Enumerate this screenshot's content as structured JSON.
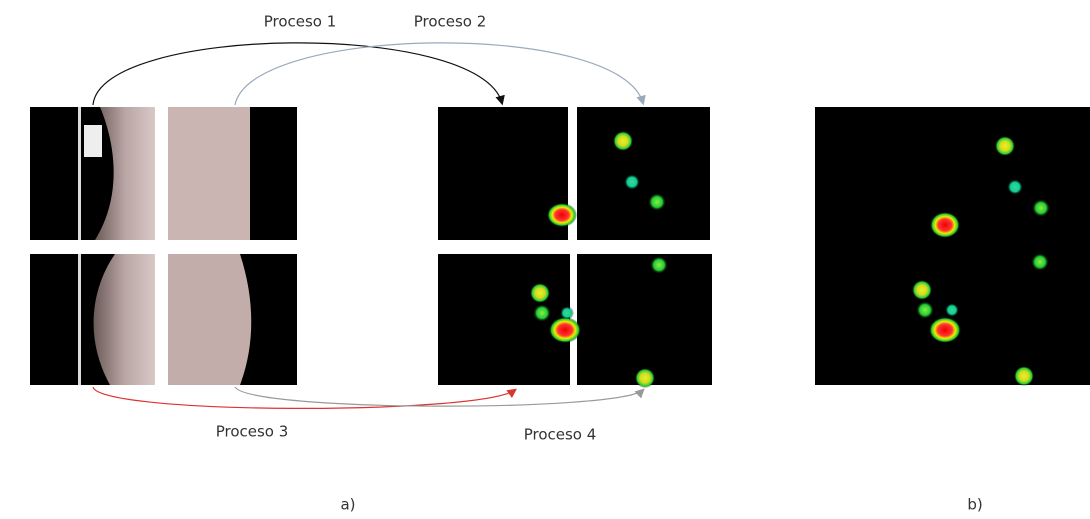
{
  "processes": [
    "Proceso 1",
    "Proceso 2",
    "Proceso 3",
    "Proceso 4"
  ],
  "panels": {
    "a": "a)",
    "b": "b)"
  }
}
